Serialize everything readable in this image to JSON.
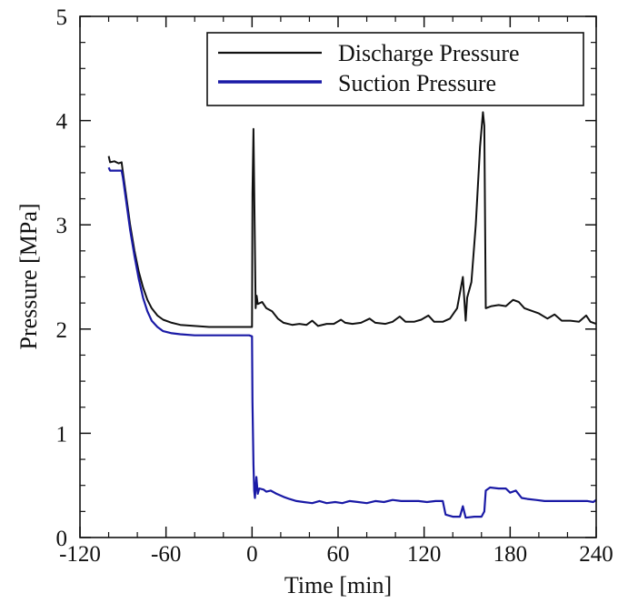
{
  "chart_data": {
    "type": "line",
    "xlabel": "Time [min]",
    "ylabel": "Pressure [MPa]",
    "xlim": [
      -120,
      240
    ],
    "ylim": [
      0,
      5
    ],
    "x_ticks": [
      -120,
      -60,
      0,
      60,
      120,
      180,
      240
    ],
    "x_tick_labels": [
      "-120",
      "-60",
      "0",
      "60",
      "120",
      "180",
      "240"
    ],
    "y_ticks": [
      0,
      1,
      2,
      3,
      4,
      5
    ],
    "y_tick_labels": [
      "0",
      "1",
      "2",
      "3",
      "4",
      "5"
    ],
    "grid": false,
    "legend_position": "top-right",
    "series": [
      {
        "name": "Discharge Pressure",
        "color": "#111111",
        "points": [
          [
            -100,
            3.66
          ],
          [
            -99,
            3.6
          ],
          [
            -96,
            3.61
          ],
          [
            -93,
            3.59
          ],
          [
            -91,
            3.6
          ],
          [
            -90,
            3.5
          ],
          [
            -88,
            3.3
          ],
          [
            -85,
            3.0
          ],
          [
            -82,
            2.75
          ],
          [
            -79,
            2.55
          ],
          [
            -76,
            2.4
          ],
          [
            -73,
            2.28
          ],
          [
            -70,
            2.2
          ],
          [
            -66,
            2.13
          ],
          [
            -62,
            2.09
          ],
          [
            -56,
            2.06
          ],
          [
            -50,
            2.04
          ],
          [
            -40,
            2.03
          ],
          [
            -30,
            2.02
          ],
          [
            -20,
            2.02
          ],
          [
            -10,
            2.02
          ],
          [
            0,
            2.02
          ],
          [
            0.3,
            3.3
          ],
          [
            1,
            3.92
          ],
          [
            1.8,
            3.0
          ],
          [
            2.5,
            2.2
          ],
          [
            3.2,
            2.32
          ],
          [
            4,
            2.24
          ],
          [
            7,
            2.26
          ],
          [
            10,
            2.2
          ],
          [
            14,
            2.17
          ],
          [
            18,
            2.1
          ],
          [
            22,
            2.06
          ],
          [
            28,
            2.04
          ],
          [
            33,
            2.05
          ],
          [
            38,
            2.04
          ],
          [
            42,
            2.08
          ],
          [
            46,
            2.03
          ],
          [
            52,
            2.05
          ],
          [
            57,
            2.05
          ],
          [
            62,
            2.09
          ],
          [
            65,
            2.06
          ],
          [
            70,
            2.05
          ],
          [
            76,
            2.06
          ],
          [
            82,
            2.1
          ],
          [
            86,
            2.06
          ],
          [
            93,
            2.05
          ],
          [
            98,
            2.07
          ],
          [
            103,
            2.12
          ],
          [
            107,
            2.07
          ],
          [
            113,
            2.07
          ],
          [
            118,
            2.09
          ],
          [
            123,
            2.13
          ],
          [
            127,
            2.07
          ],
          [
            133,
            2.07
          ],
          [
            138,
            2.1
          ],
          [
            143,
            2.2
          ],
          [
            147,
            2.5
          ],
          [
            149,
            2.08
          ],
          [
            150,
            2.3
          ],
          [
            153,
            2.45
          ],
          [
            156,
            3.0
          ],
          [
            159,
            3.75
          ],
          [
            161,
            4.08
          ],
          [
            162,
            3.95
          ],
          [
            163,
            2.2
          ],
          [
            167,
            2.22
          ],
          [
            172,
            2.23
          ],
          [
            177,
            2.22
          ],
          [
            182,
            2.28
          ],
          [
            186,
            2.26
          ],
          [
            190,
            2.2
          ],
          [
            194,
            2.18
          ],
          [
            200,
            2.15
          ],
          [
            206,
            2.1
          ],
          [
            211,
            2.14
          ],
          [
            216,
            2.08
          ],
          [
            222,
            2.08
          ],
          [
            228,
            2.07
          ],
          [
            233,
            2.13
          ],
          [
            236,
            2.07
          ],
          [
            238,
            2.06
          ],
          [
            240,
            2.05
          ]
        ]
      },
      {
        "name": "Suction Pressure",
        "color": "#1a1aa6",
        "points": [
          [
            -100,
            3.55
          ],
          [
            -99,
            3.52
          ],
          [
            -95,
            3.52
          ],
          [
            -91,
            3.52
          ],
          [
            -90,
            3.45
          ],
          [
            -88,
            3.25
          ],
          [
            -85,
            2.95
          ],
          [
            -82,
            2.7
          ],
          [
            -79,
            2.48
          ],
          [
            -76,
            2.3
          ],
          [
            -73,
            2.17
          ],
          [
            -70,
            2.08
          ],
          [
            -66,
            2.02
          ],
          [
            -62,
            1.98
          ],
          [
            -56,
            1.96
          ],
          [
            -50,
            1.95
          ],
          [
            -40,
            1.94
          ],
          [
            -30,
            1.94
          ],
          [
            -20,
            1.94
          ],
          [
            -10,
            1.94
          ],
          [
            -2,
            1.94
          ],
          [
            0,
            1.93
          ],
          [
            0.3,
            1.3
          ],
          [
            1,
            0.7
          ],
          [
            1.5,
            0.45
          ],
          [
            2,
            0.38
          ],
          [
            3,
            0.58
          ],
          [
            4,
            0.42
          ],
          [
            5,
            0.47
          ],
          [
            8,
            0.46
          ],
          [
            10,
            0.44
          ],
          [
            13,
            0.45
          ],
          [
            17,
            0.42
          ],
          [
            22,
            0.39
          ],
          [
            26,
            0.37
          ],
          [
            31,
            0.35
          ],
          [
            36,
            0.34
          ],
          [
            42,
            0.33
          ],
          [
            47,
            0.35
          ],
          [
            52,
            0.33
          ],
          [
            58,
            0.34
          ],
          [
            63,
            0.33
          ],
          [
            68,
            0.35
          ],
          [
            74,
            0.34
          ],
          [
            80,
            0.33
          ],
          [
            86,
            0.35
          ],
          [
            92,
            0.34
          ],
          [
            98,
            0.36
          ],
          [
            104,
            0.35
          ],
          [
            110,
            0.35
          ],
          [
            116,
            0.35
          ],
          [
            122,
            0.34
          ],
          [
            128,
            0.35
          ],
          [
            133,
            0.35
          ],
          [
            135,
            0.22
          ],
          [
            140,
            0.2
          ],
          [
            145,
            0.2
          ],
          [
            147,
            0.3
          ],
          [
            149,
            0.19
          ],
          [
            155,
            0.2
          ],
          [
            160,
            0.2
          ],
          [
            162,
            0.25
          ],
          [
            163,
            0.45
          ],
          [
            166,
            0.48
          ],
          [
            172,
            0.47
          ],
          [
            177,
            0.47
          ],
          [
            180,
            0.43
          ],
          [
            184,
            0.45
          ],
          [
            188,
            0.38
          ],
          [
            192,
            0.37
          ],
          [
            198,
            0.36
          ],
          [
            204,
            0.35
          ],
          [
            210,
            0.35
          ],
          [
            216,
            0.35
          ],
          [
            222,
            0.35
          ],
          [
            228,
            0.35
          ],
          [
            234,
            0.35
          ],
          [
            238,
            0.34
          ],
          [
            240,
            0.36
          ]
        ]
      }
    ]
  }
}
